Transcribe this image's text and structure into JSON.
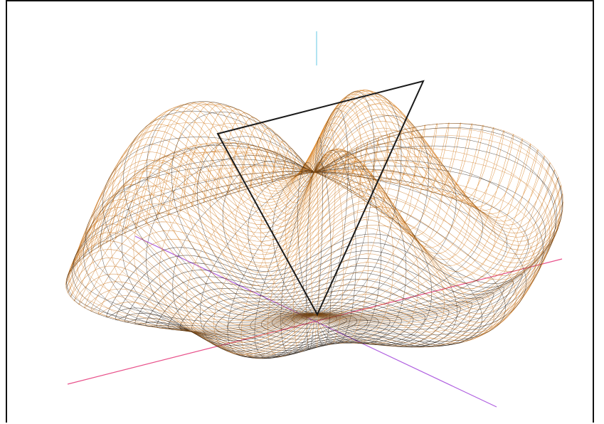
{
  "scene": {
    "object": "wireframe-surface",
    "colors": {
      "background": "#ffffff",
      "frame": "#111111",
      "mesh_dark": "#1a0f05",
      "mesh_warm": "#c8741e",
      "mesh_bright": "#d9801f",
      "axis_x": "#e8508a",
      "axis_y": "#b060e0",
      "axis_z": "#7fd3e8",
      "triangle": "#1a1a1a"
    },
    "surface": {
      "lobes": 5,
      "meridians": 96,
      "parallels": 56
    }
  }
}
